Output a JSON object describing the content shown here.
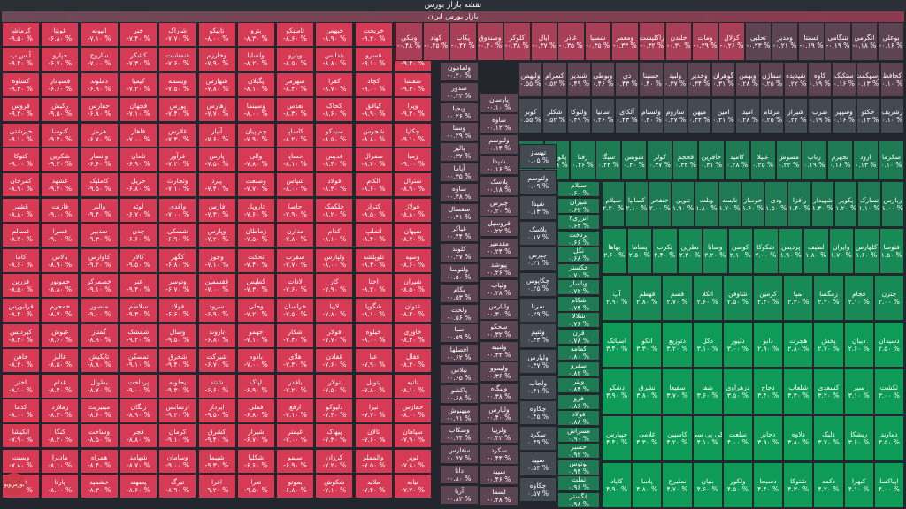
{
  "header": {
    "title": "نقشه بازار بورس",
    "sector": "بازار بورس ایران"
  },
  "logo_text": "بورس‌ویو",
  "colors": {
    "neg3": "#d63a55",
    "neg2": "#a93e57",
    "neg1": "#5c4452",
    "zero": "#434a52",
    "pos1": "#1d7a52",
    "pos2": "#178a55",
    "pos3": "#0e9b58",
    "bg": "#23272d"
  },
  "red_columns": [
    [
      "کرماشا",
      "آ س پ",
      "کساوه",
      "فروس",
      "خپرشتی",
      "کتوکا",
      "کمرجان",
      "قشیر",
      "غسالم",
      "کاما",
      "فزرین",
      "فرابورس",
      "کپردیس",
      "خاهن",
      "اختر",
      "کدما",
      "اتکیشا",
      "ویست",
      "غپاک"
    ],
    [
      "غویتا",
      "حپارو",
      "فسپانار",
      "رکیش",
      "کنوسا",
      "شکرین",
      "غشهد",
      "فازنت",
      "فسرا",
      "بالاس",
      "خموتور",
      "خمحرم",
      "غبوش",
      "عالیز",
      "غدام",
      "زملارد",
      "کنگا",
      "مادیرا",
      "پارتا"
    ],
    [
      "انیونه",
      "ساروح",
      "دملوند",
      "حفارس",
      "هرمز",
      "وانصار",
      "کاملیک",
      "والبر",
      "سدبیر",
      "کاوارس",
      "خصمرکز",
      "منصور",
      "گمتاز",
      "تاپکیش",
      "بطوال",
      "مینیریت",
      "وساخت",
      "همراه",
      "خشمید"
    ],
    [
      "خنر",
      "کشکر",
      "کیمیا",
      "فجهان",
      "فاهار",
      "تامان",
      "حریل",
      "لوئه",
      "چدن",
      "کالار",
      "عنر",
      "سلاطم",
      "شمشک",
      "تمسکن",
      "پرداخت",
      "زنگان",
      "فجر",
      "شهامد",
      "پسهند"
    ],
    [
      "شاراک",
      "فنمشبت",
      "ویسمه",
      "پورس",
      "غلارس",
      "فرآور",
      "وتجارت",
      "واقدی",
      "شسکی",
      "کگهر",
      "وتوسر",
      "فولاد",
      "وسال",
      "شخرق",
      "یحلوبه",
      "ارتتنانس",
      "کرمان",
      "وسامان",
      "تبرگ"
    ],
    [
      "تاپیکو",
      "وخارزم",
      "شهارس",
      "زهارس",
      "آبیار",
      "پارس",
      "پیرد",
      "فارس",
      "وپارس",
      "وجوز",
      "فقسمین",
      "سرود",
      "تاروند",
      "شیرکت",
      "شنتد",
      "ایرداز",
      "کشرق",
      "شپیما",
      "افرا"
    ],
    [
      "بترو",
      "ولسایا",
      "پگیلان",
      "وسینما",
      "چم پیان",
      "والی",
      "وصنعت",
      "تاروپل",
      "زماطان",
      "تحکت",
      "کطیس",
      "وحلی",
      "جهمو",
      "بادوه",
      "لپاک",
      "فملی",
      "شیراز",
      "شکلیا",
      "تعرا"
    ],
    [
      "تامینکو",
      "ویترو",
      "سهرمز",
      "تعدس",
      "کاساپا",
      "خساپا",
      "شپاس",
      "حاصا",
      "مدارن",
      "سفرب",
      "لادات",
      "خراسان",
      "شکار",
      "هلای",
      "بافدر",
      "ارفع",
      "غیمتر",
      "سیمو",
      "بموتو"
    ],
    [
      "خبهمن",
      "بتدانس",
      "کفرا",
      "کحاک",
      "سیدکو",
      "غدیس",
      "فولاد",
      "خلکمک",
      "کدام",
      "ولپارس",
      "کار",
      "لاپیا",
      "فولار",
      "غفادن",
      "تولار",
      "دلیوکو",
      "پیهاک",
      "کرزان",
      "شکوش"
    ],
    [
      "خریخت",
      "قسرو",
      "کچاد",
      "کیاقق",
      "شجوس",
      "سفرال",
      "الکام",
      "کتراز",
      "اتملپ",
      "تلوپلشه",
      "اختا",
      "شگوپا",
      "خیلوه",
      "عبا",
      "پتوبل",
      "ثیرا",
      "ثالان",
      "والمملو",
      "ملاید"
    ],
    [
      "جم",
      "وبهر",
      "شفسا",
      "وپرا",
      "چکایا",
      "زمیا",
      "سترال",
      "فولاژ",
      "سیهان",
      "وسپه",
      "شیران",
      "غتوان",
      "خاوری",
      "فقال",
      "ناتیه",
      "حفارس",
      "سپاهان",
      "ثوپر",
      "نیایه"
    ]
  ],
  "right_top": [
    "بوعلی",
    "انگرمی",
    "نتنگامی",
    "فسنتا",
    "ومدیر",
    "تحلیی",
    "کزلال",
    "ومات",
    "خلندن",
    "زاکلیشت",
    "ومعمر",
    "شسیا",
    "غاذر",
    "ایال",
    "کلوکز",
    "وصندوق",
    "پکاب",
    "کهاد",
    "ونیکی"
  ],
  "right_top_pct": [
    "-۰.۱۶ %",
    "-۰.۱۸ %",
    "-۰.۱۹ %",
    "-۰.۱۹ %",
    "-۰.۲۱ %",
    "-۰.۲۳ %",
    "-۰.۲۶ %",
    "-۰.۲۹ %",
    "-۰.۳۰ %",
    "-۰.۳۲ %",
    "-۰.۳۳ %",
    "-۰.۳۵ %",
    "-۰.۳۵ %",
    "-۰.۳۷ %",
    "-۰.۳۸ %",
    "-۰.۴۰ %",
    "-۰.۴۲ %",
    "-۰.۴۵ %",
    "-۰.۴۸ %"
  ],
  "right_row2": [
    "کحافظ",
    "وسهکمت",
    "ستکیک",
    "کاوه",
    "شپدیده",
    "سماژن",
    "وبهمن",
    "گوهران",
    "وخدیر",
    "ولبید",
    "حسینا",
    "دی",
    "وبوطی",
    "شندیر",
    "کسرام",
    "ولیهمن"
  ],
  "right_row3": [
    "رشریف",
    "حکئو",
    "وسپهر",
    "ضرب",
    "شیراز",
    "مرقام",
    "امید",
    "امین",
    "میهن",
    "ساروم",
    "ولسنام",
    "آلکای",
    "سانیا",
    "ولتوکا",
    "شکلر",
    "کوبر"
  ],
  "right_row4": [
    "سکرما",
    "ارود",
    "بجهرم",
    "رتاپ",
    "مسوش",
    "غنیلا",
    "کامید",
    "خافرین",
    "قحجم",
    "کولر",
    "شوبس",
    "سیگا",
    "رفتا",
    "پکوملح",
    "تهساز"
  ],
  "green_rows": [
    [
      "زبارس",
      "تسارک",
      "پکویر",
      "شهیدار",
      "رافزا",
      "ودی",
      "خوساز",
      "تابسه",
      "ونلت",
      "تنوین",
      "خنفخر",
      "کسانپا",
      "سیلام"
    ],
    [
      "فتوسا",
      "کلهارس",
      "وایران",
      "لطیف",
      "پرديس",
      "شکوکا",
      "کوسن",
      "وسایا",
      "نطرین",
      "تکرب",
      "پساما",
      "بهاها"
    ],
    [
      "چترن",
      "فجام",
      "زمگسا",
      "بمپا",
      "کرمین",
      "شاوقن",
      "اتکلا",
      "قسم",
      "فهطم",
      "آپ"
    ],
    [
      "دسیدان",
      "دیبان",
      "پخش",
      "هجرت",
      "دابو",
      "دلیور",
      "دکل",
      "دتوزیع",
      "اتکو",
      "اسیاتک"
    ],
    [
      "ثکشت",
      "سیر",
      "کسعدی",
      "شلعاب",
      "دجاج",
      "دزهراوی",
      "شفا",
      "سفیعا",
      "نشرق",
      "دشکو"
    ],
    [
      "دماوند",
      "ریشکا",
      "ذلیک",
      "دلاوه",
      "دجابر",
      "سلعت",
      "کی پی سی",
      "کاسپین",
      "غلامی",
      "حپپارس"
    ],
    [
      "اپیاکسا",
      "کبهرا",
      "دکمه",
      "شتوکا",
      "دسبحا",
      "ولکور",
      "بنیان",
      "نملیرح",
      "پاسا",
      "کایاد"
    ]
  ]
}
